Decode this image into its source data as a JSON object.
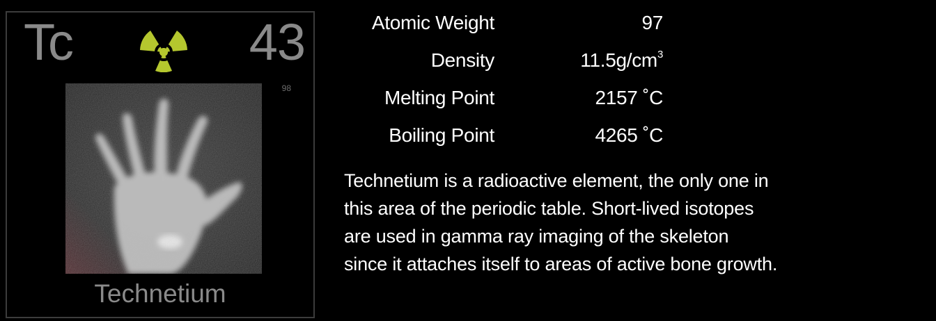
{
  "element": {
    "symbol": "Tc",
    "atomic_number": "43",
    "mass_number": "98",
    "name": "Technetium",
    "hazard_icon": "radiation-trefoil-icon",
    "hazard_color": "#b5c72e",
    "photo_subject": "hand-xray-image"
  },
  "properties": [
    {
      "label": "Atomic Weight",
      "value": "97",
      "unit": "",
      "unit_sup": ""
    },
    {
      "label": "Density",
      "value": "11.5",
      "unit": "g/cm",
      "unit_sup": "3"
    },
    {
      "label": "Melting Point",
      "value": "2157",
      "unit": "˚C",
      "unit_sup": ""
    },
    {
      "label": "Boiling Point",
      "value": "4265",
      "unit": "˚C",
      "unit_sup": ""
    }
  ],
  "description": {
    "lines": [
      "Technetium is a radioactive element, the only one in",
      "this area of the periodic table.  Short-lived isotopes",
      "are used in gamma ray imaging of the skeleton",
      "since it attaches itself to areas of active bone growth."
    ]
  },
  "colors": {
    "background": "#000000",
    "tile_border": "#3c3c3c",
    "tile_text": "#8a8a8a",
    "text": "#ffffff"
  }
}
